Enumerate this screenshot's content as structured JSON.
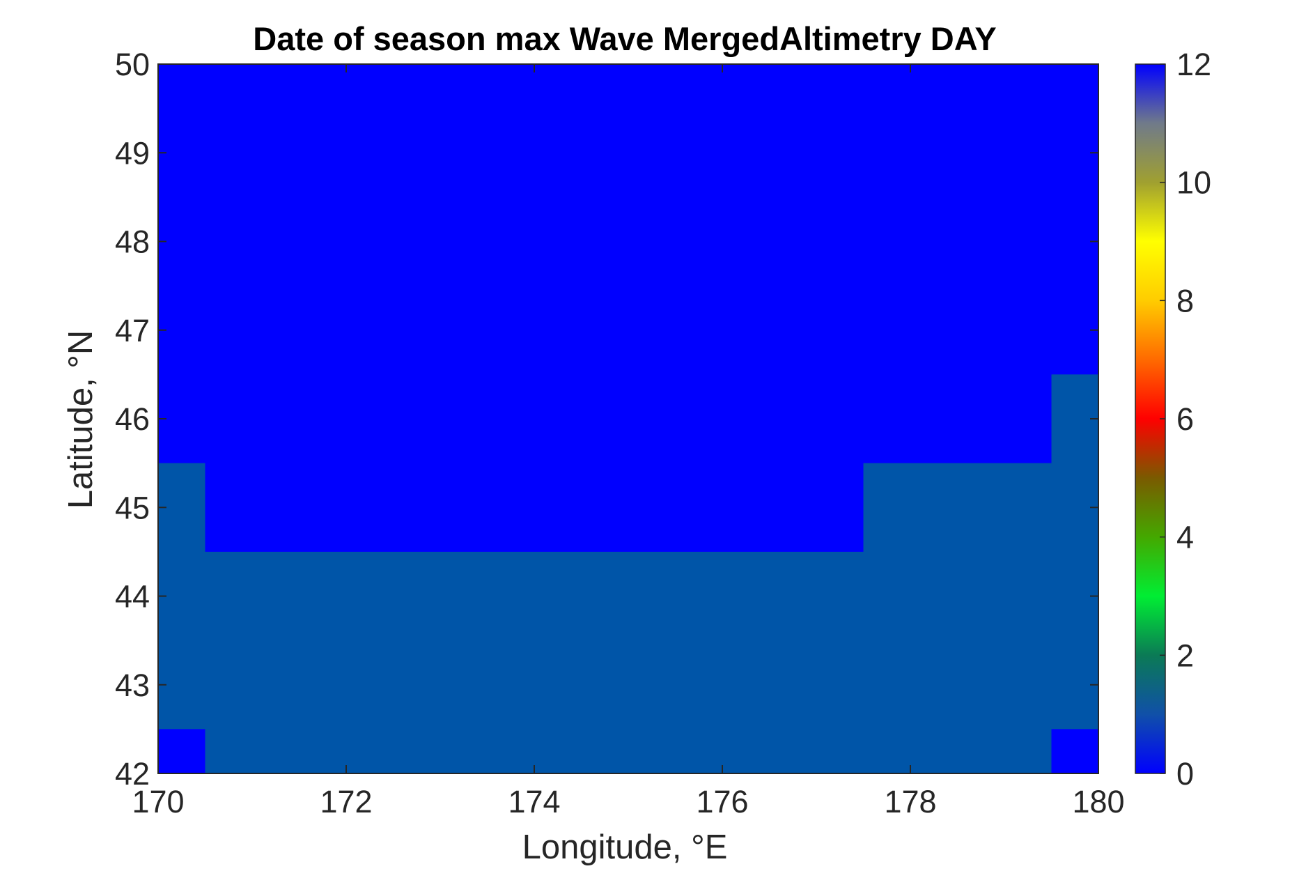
{
  "chart_data": {
    "type": "heatmap",
    "title": "Date of season max Wave MergedAltimetry DAY",
    "xlabel": "Longitude, °E",
    "ylabel": "Latitude, °N",
    "xlim": [
      170,
      180
    ],
    "ylim": [
      42,
      50
    ],
    "x_ticks": [
      "170",
      "172",
      "174",
      "176",
      "178",
      "180"
    ],
    "y_ticks": [
      "42",
      "43",
      "44",
      "45",
      "46",
      "47",
      "48",
      "49",
      "50"
    ],
    "colorbar": {
      "range": [
        0,
        12
      ],
      "ticks": [
        "0",
        "2",
        "4",
        "6",
        "8",
        "10",
        "12"
      ],
      "colormap": [
        {
          "value": 0,
          "color": "#0000ff"
        },
        {
          "value": 1,
          "color": "#1050a8"
        },
        {
          "value": 2,
          "color": "#0b7a55"
        },
        {
          "value": 3,
          "color": "#00ee33"
        },
        {
          "value": 4,
          "color": "#44a800"
        },
        {
          "value": 5,
          "color": "#7a5a00"
        },
        {
          "value": 6,
          "color": "#ff0000"
        },
        {
          "value": 7,
          "color": "#ff6a00"
        },
        {
          "value": 8,
          "color": "#ffcc00"
        },
        {
          "value": 9,
          "color": "#ffff00"
        },
        {
          "value": 10,
          "color": "#a0a030"
        },
        {
          "value": 11,
          "color": "#707a8a"
        },
        {
          "value": 12,
          "color": "#0000ff"
        }
      ]
    },
    "grid_lon": [
      170.5,
      171.5,
      172.5,
      173.5,
      174.5,
      175.5,
      176.5,
      177.5,
      178.5,
      179.5
    ],
    "regions": [
      {
        "name": "upper",
        "value": 0,
        "color": "#0000ff"
      },
      {
        "name": "lower",
        "value": 1,
        "color": "#0055a8"
      }
    ],
    "boundary_lat_by_lon": [
      {
        "lon_from": 170.0,
        "lon_to": 170.5,
        "lat_top_of_lower": 45.5,
        "lat_bottom_of_lower": 42.5
      },
      {
        "lon_from": 170.5,
        "lon_to": 177.5,
        "lat_top_of_lower": 44.5,
        "lat_bottom_of_lower": 42.0
      },
      {
        "lon_from": 177.5,
        "lon_to": 179.5,
        "lat_top_of_lower": 45.5,
        "lat_bottom_of_lower": 42.0
      },
      {
        "lon_from": 179.5,
        "lon_to": 180.0,
        "lat_top_of_lower": 46.5,
        "lat_bottom_of_lower": 42.5
      }
    ]
  }
}
